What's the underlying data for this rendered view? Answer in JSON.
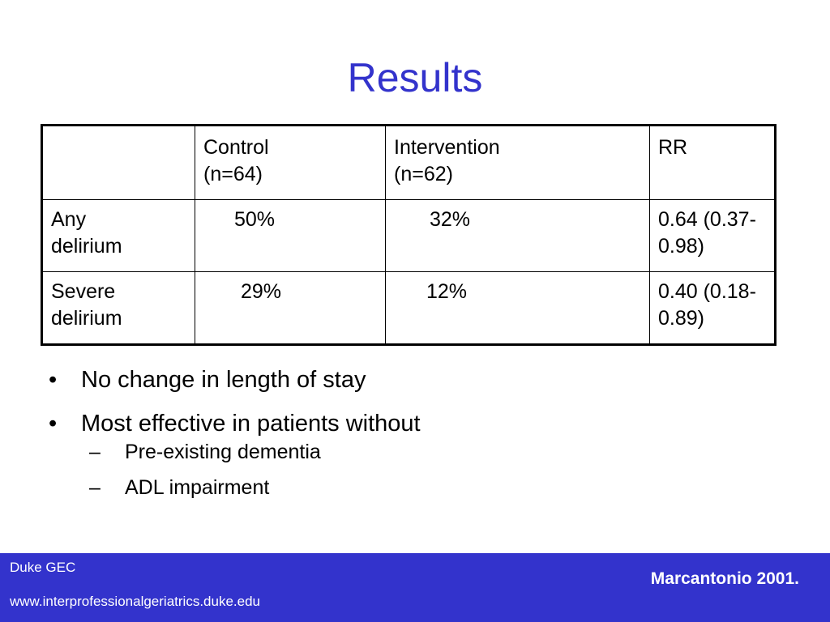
{
  "slide": {
    "title": "Results"
  },
  "table": {
    "header": [
      "",
      "Control\n(n=64)",
      "Intervention\n(n=62)",
      "RR"
    ],
    "rows": [
      {
        "label": "Any\ndelirium",
        "control": "50%",
        "intervention": "32%",
        "rr": "0.64 (0.37-0.98)"
      },
      {
        "label": "Severe\ndelirium",
        "control": "29%",
        "intervention": "12%",
        "rr": "0.40 (0.18-0.89)"
      }
    ]
  },
  "bullets": [
    "No change in length of stay",
    "Most effective in patients without"
  ],
  "sub_bullets": [
    "Pre-existing dementia",
    "ADL impairment"
  ],
  "footer": {
    "org": "Duke GEC",
    "url": "www.interprofessionalgeriatrics.duke.edu",
    "citation": "Marcantonio 2001."
  },
  "colors": {
    "title": "#3333cc",
    "footer_bg": "#3333cc"
  }
}
